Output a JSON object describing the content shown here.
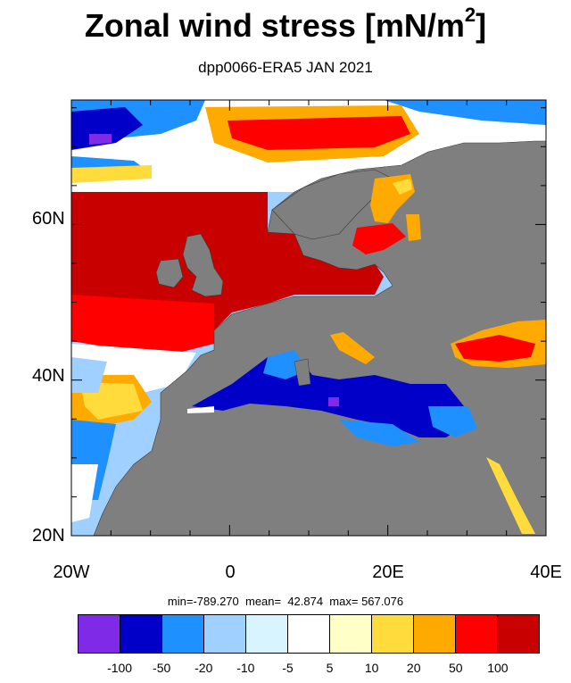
{
  "title": "Zonal wind stress [mN/m",
  "title_sup": "2",
  "title_end": "]",
  "subtitle": "dpp0066-ERA5  JAN 2021",
  "stats": "min=-789.270  mean=  42.874  max= 567.076",
  "lat_labels": [
    "60N",
    "40N",
    "20N"
  ],
  "lon_labels": [
    "20W",
    "0",
    "20E",
    "40E"
  ],
  "colorbar": {
    "colors": [
      "#7f2ae6",
      "#0000c8",
      "#1e90ff",
      "#a0d0ff",
      "#d8f4ff",
      "#ffffff",
      "#ffffc8",
      "#ffdc3c",
      "#ffaa00",
      "#ff0000",
      "#c80000"
    ],
    "labels": [
      "-100",
      "-50",
      "-20",
      "-10",
      "-5",
      "5",
      "10",
      "20",
      "50",
      "100"
    ]
  },
  "chart_data": {
    "type": "heatmap",
    "title": "Zonal wind stress [mN/m2]",
    "subtitle": "dpp0066-ERA5  JAN 2021",
    "x_range": [
      -20,
      40
    ],
    "y_range": [
      20,
      76
    ],
    "x_ticks": [
      "20W",
      "0",
      "20E",
      "40E"
    ],
    "y_ticks": [
      "20N",
      "40N",
      "60N"
    ],
    "levels": [
      -100,
      -50,
      -20,
      -10,
      -5,
      5,
      10,
      20,
      50,
      100
    ],
    "stats": {
      "min": -789.27,
      "mean": 42.874,
      "max": 567.076
    }
  }
}
